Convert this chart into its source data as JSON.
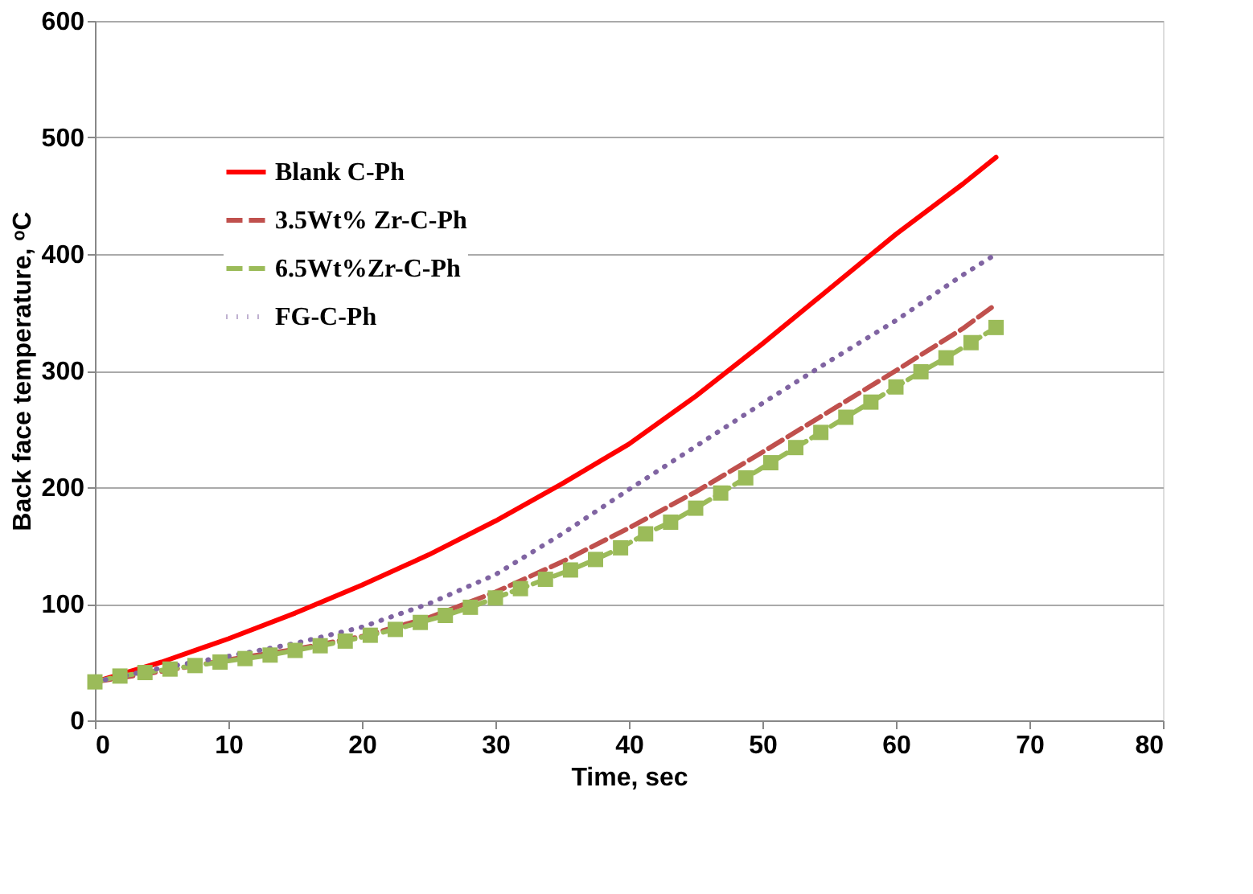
{
  "chart_data": {
    "type": "line",
    "xlabel": "Time, sec",
    "ylabel": "Back face temperature, ᵒC",
    "xlim": [
      0,
      80
    ],
    "xticks": [
      0,
      10,
      20,
      30,
      40,
      50,
      60,
      70,
      80
    ],
    "ylim": [
      0,
      600
    ],
    "yticks": [
      0,
      100,
      200,
      300,
      400,
      500,
      600
    ],
    "grid": "y",
    "legend": "top left",
    "series": [
      {
        "name": "Blank C-Ph",
        "color": "#ff0000",
        "line_style": "solid",
        "marker": "none",
        "x": [
          0,
          5,
          10,
          15,
          20,
          25,
          30,
          35,
          40,
          45,
          50,
          55,
          60,
          65,
          67.5
        ],
        "values": [
          33,
          50,
          70,
          92,
          116,
          142,
          171,
          203,
          237,
          278,
          323,
          370,
          417,
          460,
          483
        ]
      },
      {
        "name": "3.5Wt% Zr-C-Ph",
        "color": "#c0504d",
        "line_style": "dashed",
        "marker": "none",
        "x": [
          0,
          5,
          10,
          15,
          20,
          25,
          30,
          35,
          40,
          45,
          50,
          55,
          60,
          65,
          67.5
        ],
        "values": [
          33,
          42,
          52,
          61,
          72,
          88,
          110,
          136,
          165,
          196,
          230,
          265,
          300,
          336,
          357
        ]
      },
      {
        "name": "6.5Wt%Zr-C-Ph",
        "color": "#9bbb59",
        "line_style": "dashed",
        "marker": "square",
        "x": [
          0,
          1.875,
          3.75,
          5.625,
          7.5,
          9.375,
          11.25,
          13.125,
          15,
          16.875,
          18.75,
          20.625,
          22.5,
          24.375,
          26.25,
          28.125,
          30,
          31.875,
          33.75,
          35.625,
          37.5,
          39.375,
          41.25,
          43.125,
          45,
          46.875,
          48.75,
          50.625,
          52.5,
          54.375,
          56.25,
          58.125,
          60,
          61.875,
          63.75,
          65.625,
          67.5
        ],
        "values": [
          33,
          38,
          41,
          44,
          47,
          50,
          53,
          56,
          60,
          64,
          68,
          73,
          78,
          84,
          90,
          97,
          105,
          113,
          121,
          129,
          138,
          148,
          160,
          170,
          182,
          195,
          208,
          221,
          234,
          247,
          260,
          273,
          286,
          299,
          311,
          324,
          337
        ]
      },
      {
        "name": "FG-C-Ph",
        "color": "#8064a2",
        "line_style": "dotted",
        "marker": "none",
        "x": [
          0,
          5,
          10,
          15,
          20,
          25,
          30,
          35,
          40,
          45,
          50,
          55,
          60,
          65,
          67.5
        ],
        "values": [
          33,
          45,
          55,
          66,
          80,
          100,
          125,
          160,
          198,
          235,
          272,
          308,
          343,
          382,
          400
        ]
      }
    ]
  }
}
